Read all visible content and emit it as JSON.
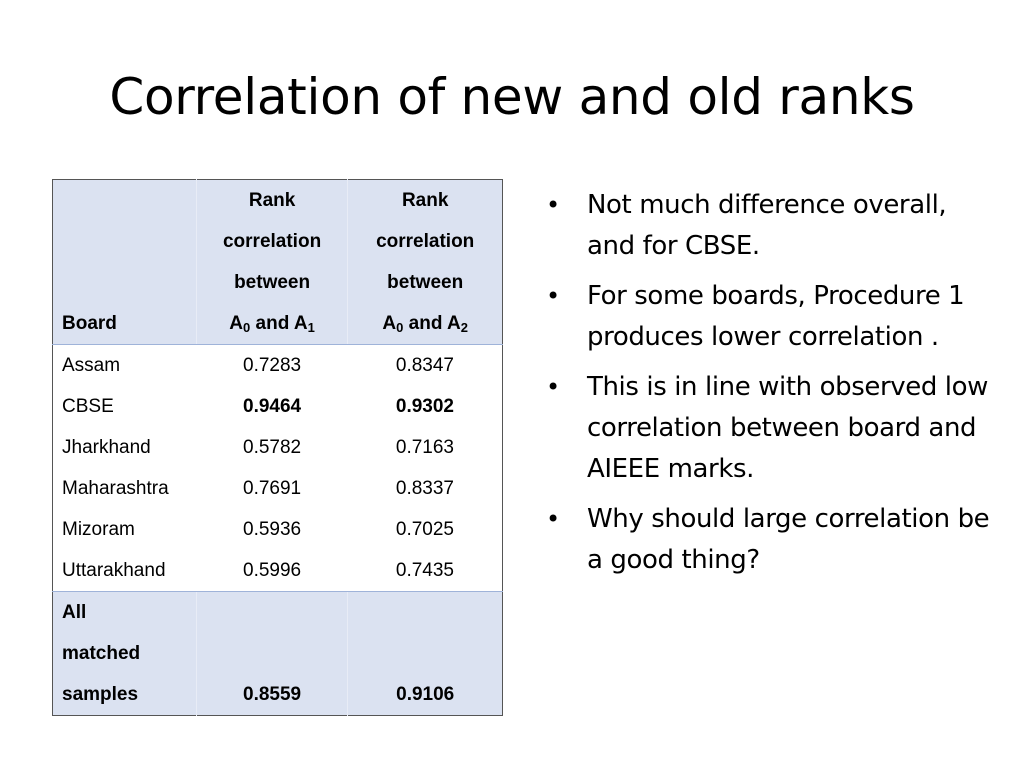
{
  "slide": {
    "title": "Correlation of new and old ranks"
  },
  "table": {
    "headers": {
      "board": "Board",
      "col1_lines": [
        "Rank",
        "correlation",
        "between"
      ],
      "col1_sym": {
        "a": "A",
        "a_sub": "0",
        "and": " and ",
        "b": "A",
        "b_sub": "1"
      },
      "col2_lines": [
        "Rank",
        "correlation",
        "between"
      ],
      "col2_sym": {
        "a": "A",
        "a_sub": "0",
        "and": " and ",
        "b": "A",
        "b_sub": "2"
      }
    },
    "rows": [
      {
        "board": "Assam",
        "a1": "0.7283",
        "a2": "0.8347",
        "bold": false
      },
      {
        "board": "CBSE",
        "a1": "0.9464",
        "a2": "0.9302",
        "bold": true
      },
      {
        "board": "Jharkhand",
        "a1": "0.5782",
        "a2": "0.7163",
        "bold": false
      },
      {
        "board": "Maharashtra",
        "a1": "0.7691",
        "a2": "0.8337",
        "bold": false
      },
      {
        "board": "Mizoram",
        "a1": "0.5936",
        "a2": "0.7025",
        "bold": false
      },
      {
        "board": "Uttarakhand",
        "a1": "0.5996",
        "a2": "0.7435",
        "bold": false
      }
    ],
    "total": {
      "board_lines": [
        "All",
        "matched",
        "samples"
      ],
      "a1": "0.8559",
      "a2": "0.9106"
    }
  },
  "bullets": [
    "Not much difference overall, and for CBSE.",
    "For some boards, Procedure 1 produces lower correlation .",
    "This is in line with observed low correlation between board and AIEEE marks.",
    "Why should large correlation be a good thing?"
  ],
  "bullet_glyph": "•"
}
